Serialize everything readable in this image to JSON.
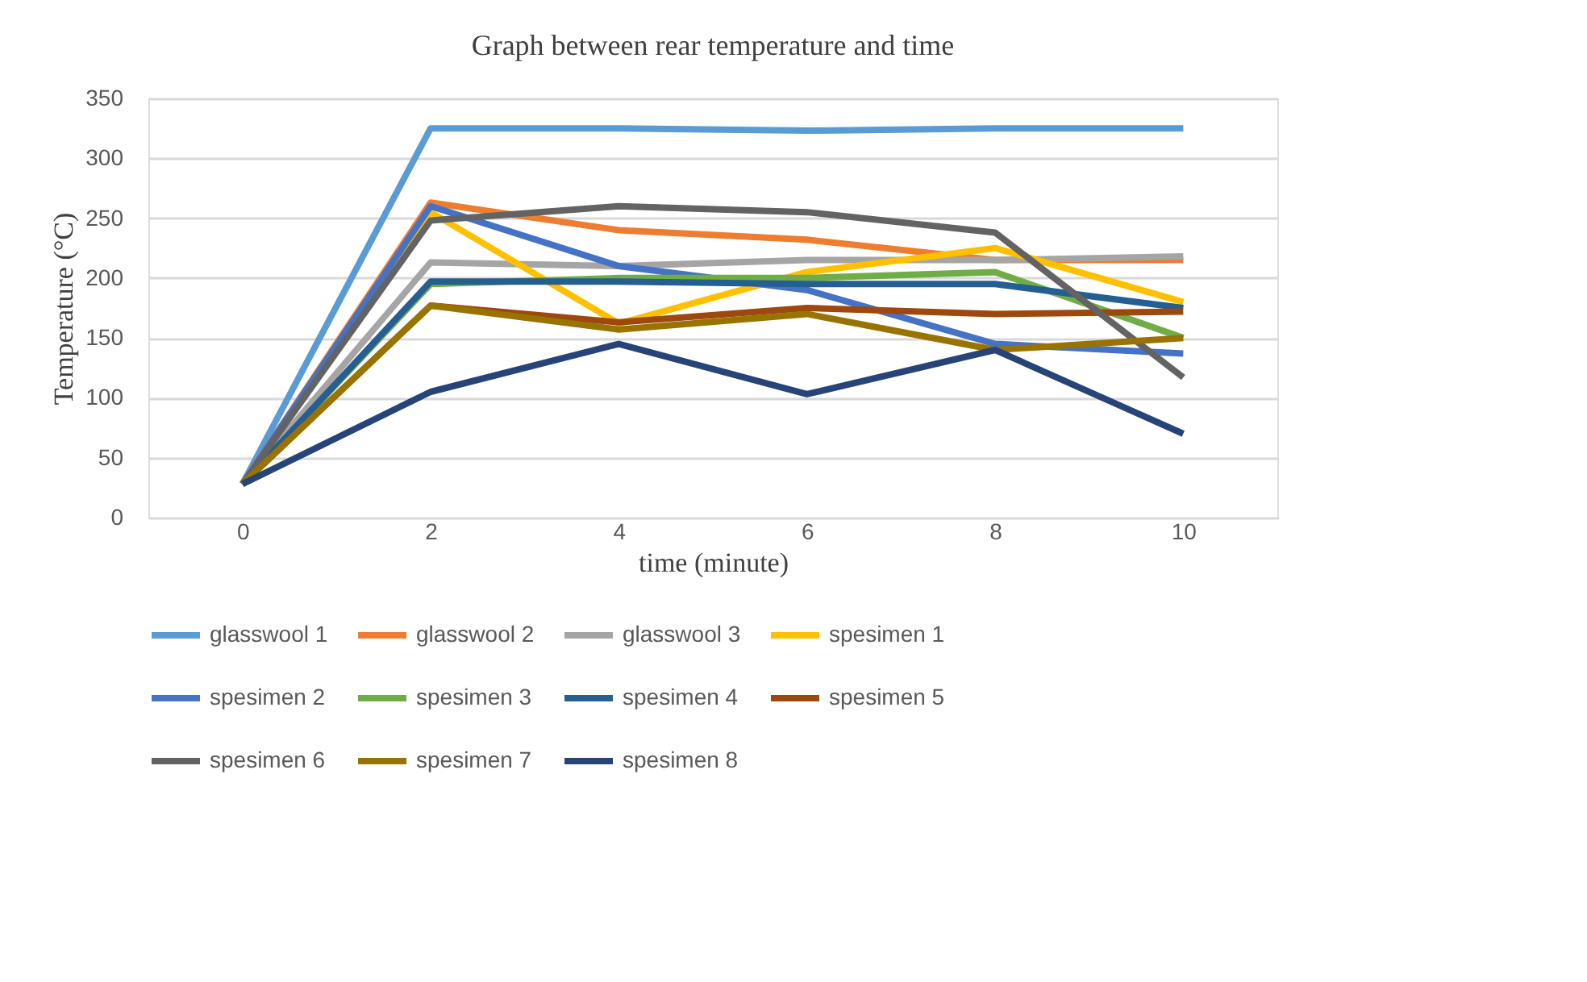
{
  "chart_data": {
    "type": "line",
    "title": "Graph between rear temperature and time",
    "xlabel": "time (minute)",
    "ylabel": "Temperature (°C)",
    "categories": [
      "0",
      "2",
      "4",
      "6",
      "8",
      "10"
    ],
    "ylim": [
      0,
      350
    ],
    "yticks": [
      0,
      50,
      100,
      150,
      200,
      250,
      300,
      350
    ],
    "grid": "y",
    "legend": "bottom",
    "marker": "none",
    "line_style": "solid",
    "series": [
      {
        "name": "glasswool 1",
        "color": "#5b9bd5",
        "values": [
          28,
          325,
          325,
          323,
          325,
          325
        ]
      },
      {
        "name": "glasswool 2",
        "color": "#ed7d31",
        "values": [
          28,
          263,
          240,
          232,
          215,
          215
        ]
      },
      {
        "name": "glasswool 3",
        "color": "#a5a5a5",
        "values": [
          28,
          213,
          210,
          215,
          215,
          218
        ]
      },
      {
        "name": "spesimen 1",
        "color": "#ffc000",
        "values": [
          28,
          255,
          162,
          205,
          225,
          180
        ]
      },
      {
        "name": "spesimen 2",
        "color": "#4472c4",
        "values": [
          28,
          260,
          210,
          190,
          145,
          137
        ]
      },
      {
        "name": "spesimen 3",
        "color": "#70ad47",
        "values": [
          28,
          195,
          200,
          200,
          205,
          150
        ]
      },
      {
        "name": "spesimen 4",
        "color": "#255e91",
        "values": [
          28,
          197,
          197,
          195,
          195,
          175
        ]
      },
      {
        "name": "spesimen 5",
        "color": "#9e480e",
        "values": [
          28,
          177,
          163,
          175,
          170,
          172
        ]
      },
      {
        "name": "spesimen 6",
        "color": "#636363",
        "values": [
          28,
          248,
          260,
          255,
          238,
          117
        ]
      },
      {
        "name": "spesimen 7",
        "color": "#997300",
        "values": [
          28,
          177,
          157,
          170,
          140,
          150
        ]
      },
      {
        "name": "spesimen 8",
        "color": "#264478",
        "values": [
          28,
          105,
          145,
          103,
          140,
          70
        ]
      }
    ]
  }
}
